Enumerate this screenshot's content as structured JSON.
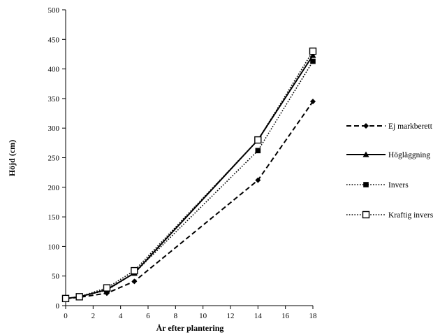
{
  "chart_data": {
    "type": "line",
    "xlabel": "År efter plantering",
    "ylabel": "Höjd (cm)",
    "xlim": [
      0,
      18
    ],
    "ylim": [
      0,
      500
    ],
    "xticks": [
      0,
      2,
      4,
      6,
      8,
      10,
      12,
      14,
      16,
      18
    ],
    "yticks": [
      0,
      50,
      100,
      150,
      200,
      250,
      300,
      350,
      400,
      450,
      500
    ],
    "grid": false,
    "legend_position": "right",
    "series": [
      {
        "name": "Ej markberett",
        "x": [
          0,
          1,
          3,
          5,
          14,
          18
        ],
        "values": [
          12,
          14,
          21,
          41,
          212,
          345
        ],
        "line_style": "dashed",
        "marker": "diamond",
        "color": "#000000"
      },
      {
        "name": "Högläggning",
        "x": [
          0,
          1,
          3,
          5,
          14,
          18
        ],
        "values": [
          12,
          15,
          27,
          55,
          280,
          423
        ],
        "line_style": "solid",
        "marker": "triangle",
        "color": "#000000"
      },
      {
        "name": "Invers",
        "x": [
          0,
          1,
          3,
          5,
          14,
          18
        ],
        "values": [
          12,
          15,
          26,
          55,
          262,
          413
        ],
        "line_style": "dotted",
        "marker": "square",
        "color": "#000000"
      },
      {
        "name": "Kraftig invers",
        "x": [
          0,
          1,
          3,
          5,
          14,
          18
        ],
        "values": [
          12,
          15,
          30,
          59,
          280,
          430
        ],
        "line_style": "dotted",
        "marker": "open-square",
        "color": "#000000"
      }
    ]
  }
}
